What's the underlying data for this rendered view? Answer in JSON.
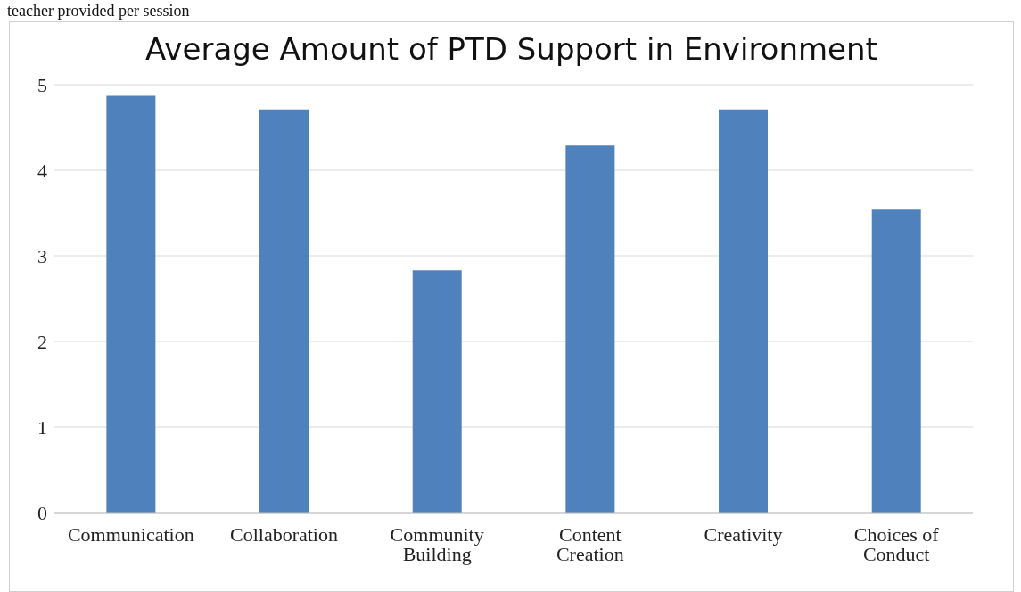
{
  "chart_data": {
    "type": "bar",
    "title": "Average Amount of PTD Support in Environment",
    "annotations": [
      "teacher provided per session"
    ],
    "categories": [
      "Communication",
      "Collaboration",
      "Community Building",
      "Content Creation",
      "Creativity",
      "Choices of Conduct"
    ],
    "values": [
      4.87,
      4.71,
      2.83,
      4.29,
      4.71,
      3.55
    ],
    "color": "#4f81bd",
    "ylim": [
      0,
      5
    ],
    "yticks": [
      0,
      1,
      2,
      3,
      4,
      5
    ],
    "grid": "y"
  }
}
